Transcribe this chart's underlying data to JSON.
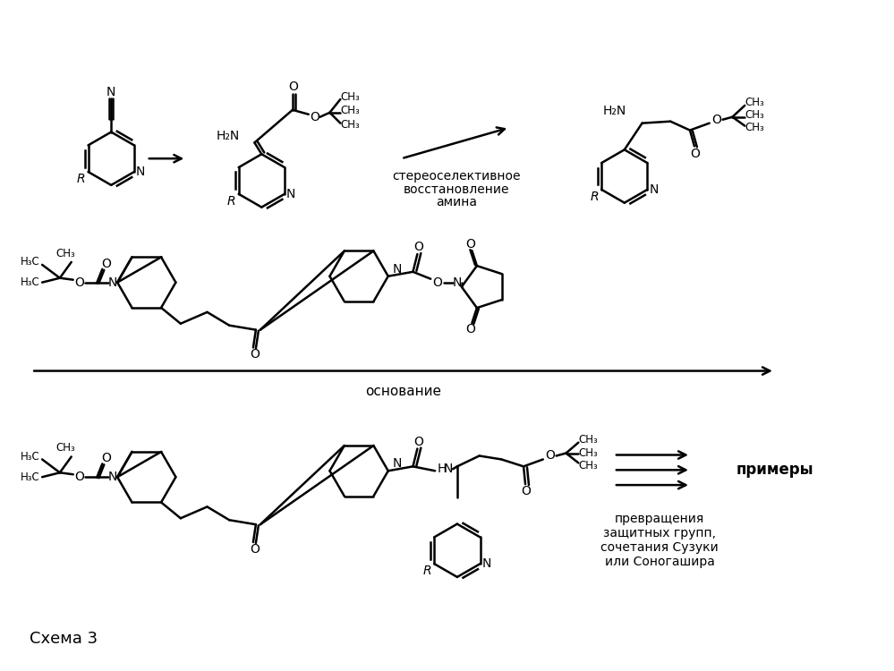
{
  "background_color": "#ffffff",
  "figsize": [
    9.99,
    7.5
  ],
  "dpi": 100,
  "schema_label": "Схема 3",
  "row2_arrow_label": "основание",
  "row3_arrows_label": "примеры",
  "row3_text": "превращения\nзащитных групп,\nсочетания Сузуки\nили Соногашира",
  "arrow2_label_line1": "стереоселективное",
  "arrow2_label_line2": "восстановление",
  "arrow2_label_line3": "амина"
}
